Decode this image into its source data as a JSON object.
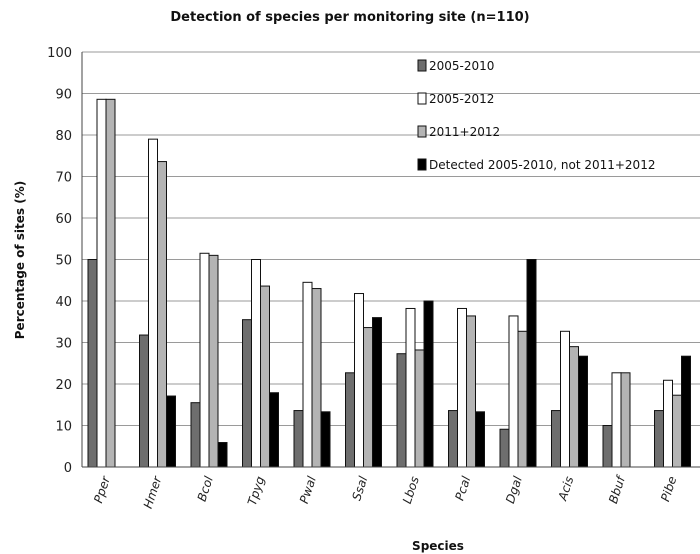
{
  "chart_data": {
    "type": "bar",
    "title": "Detection of species per monitoring site (n=110)",
    "xlabel": "Species",
    "ylabel": "Percentage of sites (%)",
    "ylim": [
      0,
      100
    ],
    "yticks": [
      0,
      10,
      20,
      30,
      40,
      50,
      60,
      70,
      80,
      90,
      100
    ],
    "grid": true,
    "legend_position": "top-right",
    "categories": [
      "Pper",
      "Hmer",
      "Bcol",
      "Tpyg",
      "Pwal",
      "Ssal",
      "Lbos",
      "Pcal",
      "Dgal",
      "Acis",
      "Bbuf",
      "Pibe"
    ],
    "series": [
      {
        "name": "2005-2010",
        "color": "#6e6e6e",
        "values": [
          50,
          31.8,
          15.5,
          35.5,
          13.6,
          22.7,
          27.3,
          13.6,
          9.1,
          13.6,
          10,
          13.6
        ]
      },
      {
        "name": "2005-2012",
        "color": "#ffffff",
        "values": [
          88.6,
          79,
          51.5,
          50,
          44.5,
          41.8,
          38.2,
          38.2,
          36.4,
          32.7,
          22.7,
          20.9
        ]
      },
      {
        "name": "2011+2012",
        "color": "#b4b4b4",
        "values": [
          88.6,
          73.6,
          51,
          43.6,
          43,
          33.6,
          28.2,
          36.4,
          32.7,
          29,
          22.7,
          17.3
        ]
      },
      {
        "name": "Detected 2005-2010, not 2011+2012",
        "color": "#000000",
        "values": [
          0,
          17.1,
          5.9,
          17.9,
          13.3,
          36,
          40,
          13.3,
          50,
          26.7,
          0,
          26.7
        ]
      }
    ]
  }
}
